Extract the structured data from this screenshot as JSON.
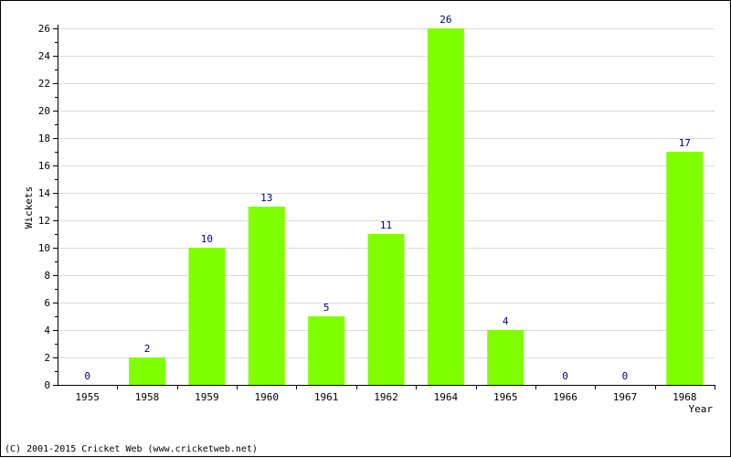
{
  "chart_data": {
    "type": "bar",
    "categories": [
      "1955",
      "1958",
      "1959",
      "1960",
      "1961",
      "1962",
      "1964",
      "1965",
      "1966",
      "1967",
      "1968"
    ],
    "values": [
      0,
      2,
      10,
      13,
      5,
      11,
      26,
      4,
      0,
      0,
      17
    ],
    "title": "",
    "xlabel": "Year",
    "ylabel": "Wickets",
    "ylim": [
      0,
      26
    ],
    "yticks": [
      0,
      2,
      4,
      6,
      8,
      10,
      12,
      14,
      16,
      18,
      20,
      22,
      24,
      26
    ],
    "grid": true,
    "bar_color": "#80ff00",
    "label_color": "#000080"
  },
  "footer": {
    "copyright": "(C) 2001-2015 Cricket Web (www.cricketweb.net)"
  }
}
